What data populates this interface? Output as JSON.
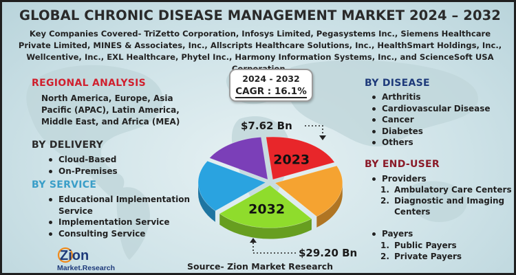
{
  "title": "GLOBAL CHRONIC DISEASE MANAGEMENT MARKET 2024 – 2032",
  "companies": "Key Companies Covered- TriZetto Corporation, Infosys Limited, Pegasystems Inc., Siemens Healthcare Private Limited, MINES & Associates, Inc., Allscripts Healthcare Solutions, Inc., HealthSmart Holdings, Inc., Wellcentive, Inc., EXL Healthcare, Phytel Inc., Harmony Information Systems, Inc., and ScienceSoft USA Corporation.",
  "regional": {
    "heading": "REGIONAL ANALYSIS",
    "text": "North America, Europe, Asia Pacific (APAC), Latin America, Middle East, and Africa (MEA)"
  },
  "delivery": {
    "heading": "BY DELIVERY",
    "items": [
      "Cloud-Based",
      "On-Premises"
    ]
  },
  "service": {
    "heading": "BY SERVICE",
    "items": [
      "Educational Implementation Service",
      "Implementation Service",
      "Consulting Service"
    ]
  },
  "disease": {
    "heading": "BY DISEASE",
    "items": [
      "Arthritis",
      "Cardiovascular Disease",
      "Cancer",
      "Diabetes",
      "Others"
    ]
  },
  "end_user": {
    "heading": "BY END-USER",
    "providers": "Providers",
    "providers_sub": [
      {
        "num": "1.",
        "label": "Ambulatory Care Centers"
      },
      {
        "num": "2.",
        "label": "Diagnostic and Imaging Centers"
      }
    ],
    "payers": "Payers",
    "payers_sub": [
      {
        "num": "1.",
        "label": "Public Payers"
      },
      {
        "num": "2.",
        "label": "Private Payers"
      }
    ]
  },
  "cagr": {
    "years": "2024 - 2032",
    "value": "CAGR : 16.1%"
  },
  "chart_data": {
    "type": "pie",
    "title": "",
    "slices": [
      {
        "label": "2023",
        "color": "#e8262a"
      },
      {
        "label": "",
        "color": "#f5a331"
      },
      {
        "label": "2032",
        "color": "#8fdc2c"
      },
      {
        "label": "",
        "color": "#2aa3e0"
      },
      {
        "label": "",
        "color": "#7b3fb8"
      }
    ],
    "values": [
      20,
      21,
      24,
      20,
      15
    ],
    "annotations": [
      {
        "label": "2023",
        "value": "$7.62 Bn"
      },
      {
        "label": "2032",
        "value": "$29.20 Bn"
      }
    ]
  },
  "source": "Source- Zion Market Research",
  "logo": {
    "brand": "Zion",
    "sub": "Market.Research",
    "color_brand": "#1e3a7a",
    "color_accent": "#f08a1c"
  }
}
